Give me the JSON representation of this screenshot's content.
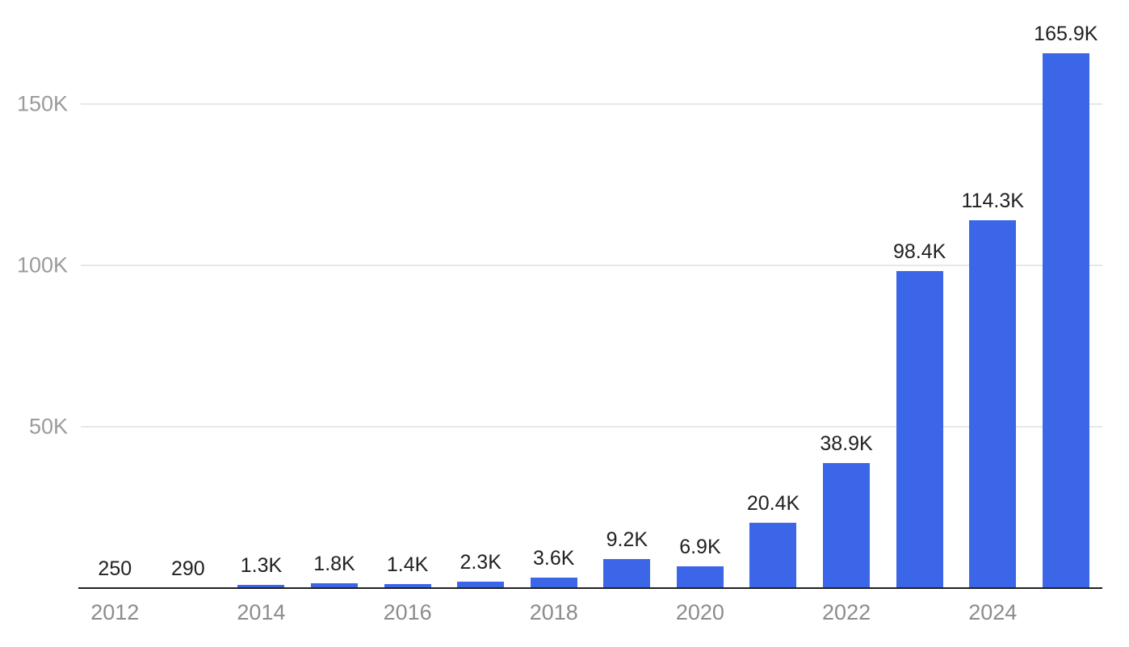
{
  "chart_data": {
    "type": "bar",
    "title": "",
    "xlabel": "",
    "ylabel": "",
    "categories": [
      "2012",
      "2013",
      "2014",
      "2015",
      "2016",
      "2017",
      "2018",
      "2019",
      "2020",
      "2021",
      "2022",
      "2023",
      "2024",
      "2025"
    ],
    "values": [
      250,
      290,
      1300,
      1800,
      1400,
      2300,
      3600,
      9200,
      6900,
      20400,
      38900,
      98400,
      114300,
      165900
    ],
    "value_labels": [
      "250",
      "290",
      "1.3K",
      "1.8K",
      "1.4K",
      "2.3K",
      "3.6K",
      "9.2K",
      "6.9K",
      "20.4K",
      "38.9K",
      "98.4K",
      "114.3K",
      "165.9K"
    ],
    "x_tick_labels": [
      "2012",
      "",
      "2014",
      "",
      "2016",
      "",
      "2018",
      "",
      "2020",
      "",
      "2022",
      "",
      "2024",
      ""
    ],
    "y_ticks": [
      {
        "label": "50K",
        "value": 50000
      },
      {
        "label": "100K",
        "value": 100000
      },
      {
        "label": "150K",
        "value": 150000
      }
    ],
    "ylim": [
      0,
      182500
    ],
    "grid": true,
    "legend": "none",
    "colors": {
      "bar": "#3C66E8",
      "data_label": "#212121",
      "y_tick_label": "#9b9b9b",
      "x_tick_label": "#8c8c8c",
      "gridline": "#e7e7e7",
      "axis_line": "#1f1f1f",
      "background": "#ffffff"
    }
  }
}
